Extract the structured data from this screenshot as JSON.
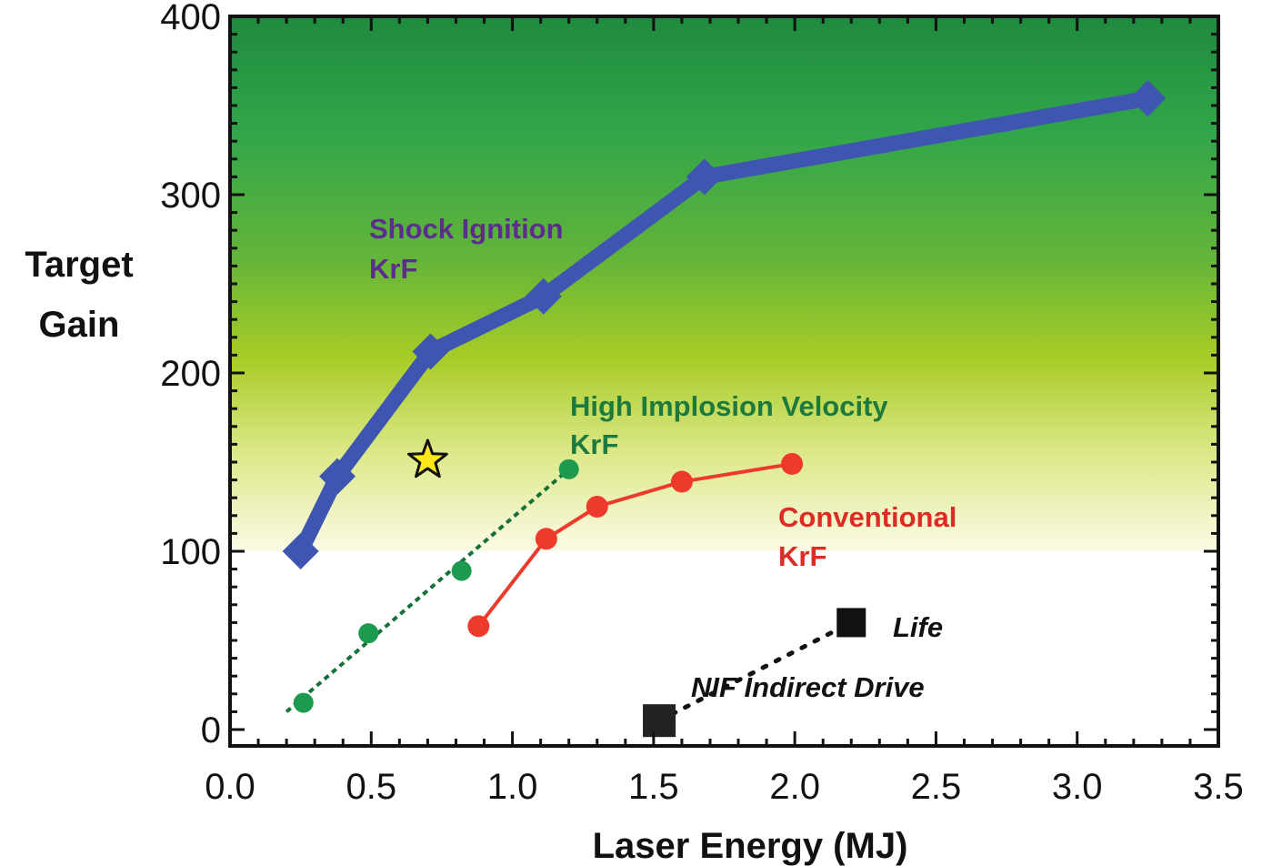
{
  "chart_data": {
    "type": "line",
    "title": "",
    "xlabel": "Laser Energy (MJ)",
    "ylabel": [
      "Target",
      "Gain"
    ],
    "xlim": [
      0.0,
      3.5
    ],
    "ylim": [
      0,
      400
    ],
    "x_ticks": [
      "0.0",
      "0.5",
      "1.0",
      "1.5",
      "2.0",
      "2.5",
      "3.0",
      "3.5"
    ],
    "y_ticks": [
      "0",
      "100",
      "200",
      "300",
      "400"
    ],
    "grid": false,
    "background": "green-to-yellow gradient above gain 100, white below",
    "series": [
      {
        "name": "Shock Ignition",
        "sublabel": "KrF",
        "color": "#3f56b0",
        "label_color": "#5b2d8e",
        "marker": "diamond",
        "line": "solid-thick",
        "points": [
          [
            0.25,
            100
          ],
          [
            0.38,
            142
          ],
          [
            0.71,
            212
          ],
          [
            1.11,
            243
          ],
          [
            1.68,
            310
          ],
          [
            3.25,
            354
          ]
        ]
      },
      {
        "name": "High Implosion Velocity",
        "sublabel": "KrF",
        "color": "#1e9a50",
        "label_color": "#1e7a3c",
        "marker": "circle",
        "line": "dotted",
        "points": [
          [
            0.26,
            15
          ],
          [
            0.49,
            54
          ],
          [
            0.82,
            89
          ],
          [
            1.2,
            146
          ]
        ],
        "trend": [
          [
            0.2,
            10
          ],
          [
            1.2,
            146
          ]
        ]
      },
      {
        "name": "Conventional",
        "sublabel": "KrF",
        "color": "#ee3a2c",
        "label_color": "#dd2b25",
        "marker": "circle",
        "line": "solid",
        "points": [
          [
            0.88,
            58
          ],
          [
            1.12,
            107
          ],
          [
            1.3,
            125
          ],
          [
            1.6,
            139
          ],
          [
            1.99,
            149
          ]
        ]
      },
      {
        "name": "NIF Indirect Drive",
        "sublabel": "Life",
        "color": "#111111",
        "marker": "square",
        "line": "dotted",
        "points": [
          [
            1.52,
            5
          ],
          [
            2.2,
            60
          ]
        ]
      }
    ],
    "annotations": [
      {
        "type": "star",
        "x": 0.7,
        "y": 151,
        "color": "#ffe81a"
      }
    ]
  }
}
